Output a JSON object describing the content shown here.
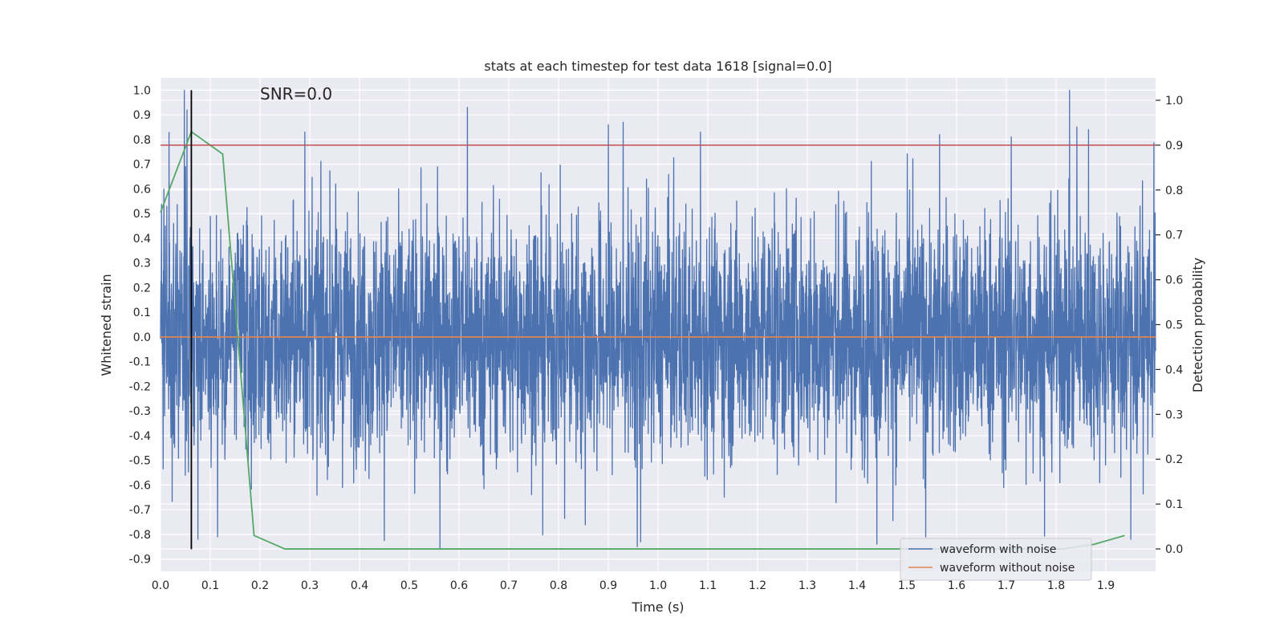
{
  "chart_data": {
    "type": "line",
    "title": "stats at each timestep for test data 1618 [signal=0.0]",
    "xlabel": "Time (s)",
    "ylabel": "Whitened strain",
    "y2label": "Detection probability",
    "annotation": "SNR=0.0",
    "xlim": [
      0.0,
      2.0
    ],
    "ylim": [
      -0.95,
      1.05
    ],
    "y2lim": [
      -0.05,
      1.05
    ],
    "x_ticks": [
      "0.0",
      "0.1",
      "0.2",
      "0.3",
      "0.4",
      "0.5",
      "0.6",
      "0.7",
      "0.8",
      "0.9",
      "1.0",
      "1.1",
      "1.2",
      "1.3",
      "1.4",
      "1.5",
      "1.6",
      "1.7",
      "1.8",
      "1.9"
    ],
    "y_ticks": [
      "1.0",
      "0.9",
      "0.8",
      "0.7",
      "0.6",
      "0.5",
      "0.4",
      "0.3",
      "0.2",
      "0.1",
      "0.0",
      "-0.1",
      "-0.2",
      "-0.3",
      "-0.4",
      "-0.5",
      "-0.6",
      "-0.7",
      "-0.8",
      "-0.9"
    ],
    "y2_ticks": [
      "1.0",
      "0.9",
      "0.8",
      "0.7",
      "0.6",
      "0.5",
      "0.4",
      "0.3",
      "0.2",
      "0.1",
      "0.0"
    ],
    "colors": {
      "background": "#eaeaf2",
      "grid": "#ffffff",
      "noise": "#4c72b0",
      "clean": "#dd8452",
      "probability": "#55a868",
      "threshold": "#c44e52",
      "marker": "#000000"
    },
    "series": [
      {
        "name": "waveform with noise",
        "axis": "left",
        "style": "dense-noise",
        "x_range": [
          0.0,
          2.0
        ],
        "samples": 4096,
        "range": [
          -0.86,
          1.0
        ],
        "spikes": [
          {
            "x": 0.048,
            "y": 1.0
          },
          {
            "x": 0.053,
            "y": 0.92
          },
          {
            "x": 0.29,
            "y": 0.83
          },
          {
            "x": 0.617,
            "y": 0.93
          },
          {
            "x": 0.9,
            "y": 0.86
          },
          {
            "x": 0.93,
            "y": 0.87
          },
          {
            "x": 1.085,
            "y": 0.83
          },
          {
            "x": 1.566,
            "y": 0.82
          },
          {
            "x": 1.71,
            "y": 0.81
          },
          {
            "x": 1.865,
            "y": 0.84
          },
          {
            "x": 0.958,
            "y": -0.85
          },
          {
            "x": 0.965,
            "y": -0.83
          },
          {
            "x": 1.44,
            "y": -0.84
          },
          {
            "x": 1.538,
            "y": -0.81
          },
          {
            "x": 1.95,
            "y": -0.82
          },
          {
            "x": 0.075,
            "y": -0.82
          },
          {
            "x": 0.115,
            "y": -0.81
          }
        ]
      },
      {
        "name": "waveform without noise",
        "axis": "left",
        "x": [
          0.0,
          2.0
        ],
        "y": [
          0.0,
          0.0
        ]
      },
      {
        "name": "detection probability",
        "axis": "right",
        "x": [
          0.0,
          0.062,
          0.125,
          0.188,
          0.25,
          1.438,
          1.5,
          1.625,
          1.75,
          1.812,
          1.875,
          1.938
        ],
        "y": [
          0.75,
          0.93,
          0.88,
          0.03,
          0.0,
          0.0,
          0.0,
          0.0,
          0.0,
          0.0,
          0.01,
          0.03
        ]
      }
    ],
    "threshold": {
      "axis": "right",
      "y": 0.9
    },
    "marker_line": {
      "x": 0.062,
      "y_from": -0.86,
      "y_to": 1.0
    },
    "legend": {
      "position": "bottom-right",
      "entries": [
        "waveform with noise",
        "waveform without noise"
      ]
    }
  }
}
